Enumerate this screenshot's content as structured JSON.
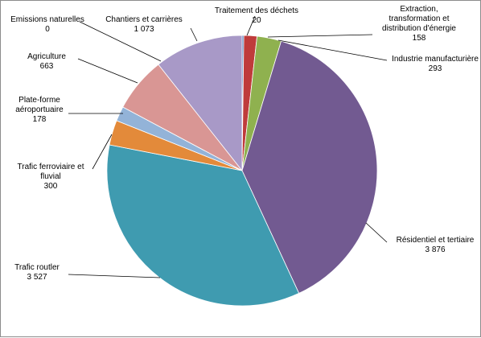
{
  "chart_data": {
    "type": "pie",
    "title": "",
    "slices": [
      {
        "label": "Traitement des déchets",
        "value": 20,
        "value_text": "20",
        "color": "#3d6fb3"
      },
      {
        "label": "Extraction, transformation et distribution d'énergie",
        "label_lines": [
          "Extraction,",
          "transformation et",
          "distribution d'énergie"
        ],
        "value": 158,
        "value_text": "158",
        "color": "#bf3b3b"
      },
      {
        "label": "Industrie manufacturière",
        "value": 293,
        "value_text": "293",
        "color": "#8fb14f"
      },
      {
        "label": "Résidentiel et tertiaire",
        "value": 3876,
        "value_text": "3 876",
        "color": "#725a91"
      },
      {
        "label": "Trafic routler",
        "value": 3527,
        "value_text": "3 527",
        "color": "#3f9bb0"
      },
      {
        "label": "Trafic ferroviaire et fluvial",
        "label_lines": [
          "Trafic ferroviaire et",
          "fluvial"
        ],
        "value": 300,
        "value_text": "300",
        "color": "#e38a3a"
      },
      {
        "label": "Plate-forme aéroportuaire",
        "label_lines": [
          "Plate-forme",
          "aéroportuaire"
        ],
        "value": 178,
        "value_text": "178",
        "color": "#93b3d8"
      },
      {
        "label": "Agriculture",
        "value": 663,
        "value_text": "663",
        "color": "#d99694"
      },
      {
        "label": "Emissions naturelles",
        "value": 0,
        "value_text": "0",
        "color": "#b8cd8a"
      },
      {
        "label": "Chantiers et carrières",
        "value": 1073,
        "value_text": "1 073",
        "color": "#a899c7"
      }
    ]
  }
}
